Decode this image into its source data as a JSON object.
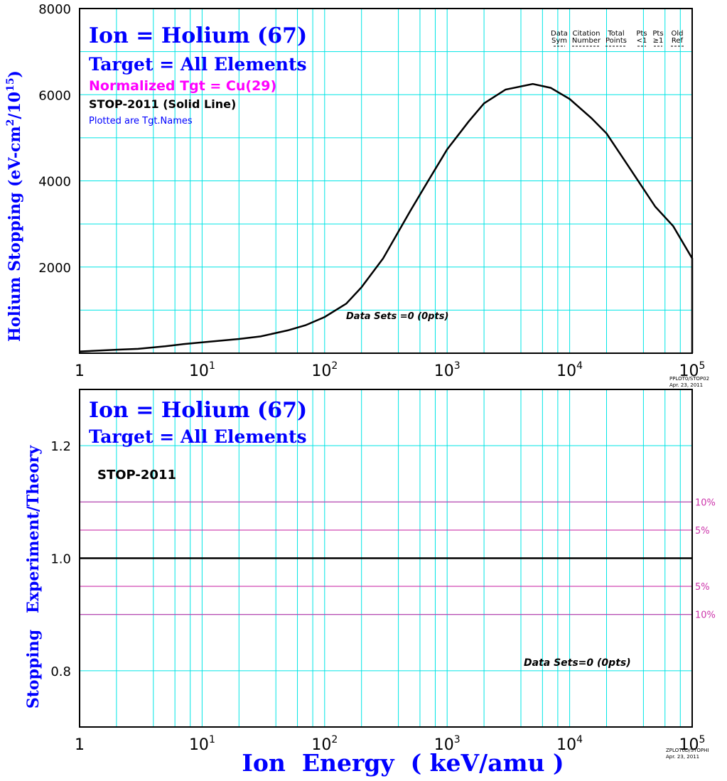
{
  "chart_data": [
    {
      "type": "line",
      "title_lines": [
        "Ion = Holium (67)",
        "Target = All Elements",
        "Normalized Tgt = Cu(29)",
        "STOP-2011 (Solid Line)",
        "Plotted are Tgt.Names"
      ],
      "ylabel_pre": "Holium Stopping (eV-cm",
      "ylabel_sup1": "2",
      "ylabel_mid": "/10",
      "ylabel_sup2": "15",
      "ylabel_post": ")",
      "x_scale": "log",
      "xlim": [
        1,
        100000
      ],
      "ylim": [
        0,
        8000
      ],
      "x_ticks": [
        {
          "base": "1",
          "exp": ""
        },
        {
          "base": "10",
          "exp": "1"
        },
        {
          "base": "10",
          "exp": "2"
        },
        {
          "base": "10",
          "exp": "3"
        },
        {
          "base": "10",
          "exp": "4"
        },
        {
          "base": "10",
          "exp": "5"
        }
      ],
      "y_ticks": [
        "2000",
        "4000",
        "6000",
        "8000"
      ],
      "grid": true,
      "legend_header": {
        "row1": [
          "Data",
          "Citation",
          "Total",
          "Pts",
          "Pts",
          "Old"
        ],
        "row2": [
          "Sym",
          "Number",
          "Points",
          "<1",
          "≥1",
          "Ref"
        ]
      },
      "annotation": "Data Sets =0 (0pts)",
      "stamp": [
        "PPLOT0/STOP02",
        "Apr. 23, 2011"
      ],
      "series": [
        {
          "name": "STOP-2011",
          "x": [
            1,
            2,
            3,
            5,
            7,
            10,
            20,
            30,
            50,
            70,
            100,
            150,
            200,
            300,
            500,
            700,
            1000,
            1500,
            2000,
            3000,
            5000,
            7000,
            10000,
            15000,
            20000,
            30000,
            50000,
            70000,
            100000
          ],
          "y": [
            40,
            80,
            100,
            160,
            210,
            250,
            330,
            390,
            530,
            650,
            840,
            1150,
            1530,
            2200,
            3300,
            4000,
            4730,
            5380,
            5800,
            6120,
            6250,
            6160,
            5900,
            5460,
            5100,
            4350,
            3400,
            2950,
            2200
          ]
        }
      ]
    },
    {
      "type": "line",
      "title_lines": [
        "Ion = Holium (67)",
        "Target = All Elements",
        "STOP-2011"
      ],
      "ylabel": "Stopping   Experiment/Theory",
      "x_scale": "log",
      "xlim": [
        1,
        100000
      ],
      "ylim": [
        0.7,
        1.3
      ],
      "y_ticks": [
        "0.8",
        "1.0",
        "1.2"
      ],
      "grid": true,
      "reference_lines": [
        {
          "y": 1.1,
          "label": "10%"
        },
        {
          "y": 1.05,
          "label": "5%"
        },
        {
          "y": 0.95,
          "label": "5%"
        },
        {
          "y": 0.9,
          "label": "10%"
        }
      ],
      "baseline": 1.0,
      "annotation": "Data Sets=0 (0pts)",
      "stamp": [
        "ZPLOT0D/STOPHI",
        "Apr. 23, 2011"
      ],
      "xlabel": "Ion  Energy  ( keV/amu )"
    }
  ],
  "colors": {
    "grid": "#00e5e5",
    "title_blue": "#0000ff",
    "magenta": "#ff00ff",
    "ref_line": "#cc33aa",
    "axis": "#000000"
  }
}
